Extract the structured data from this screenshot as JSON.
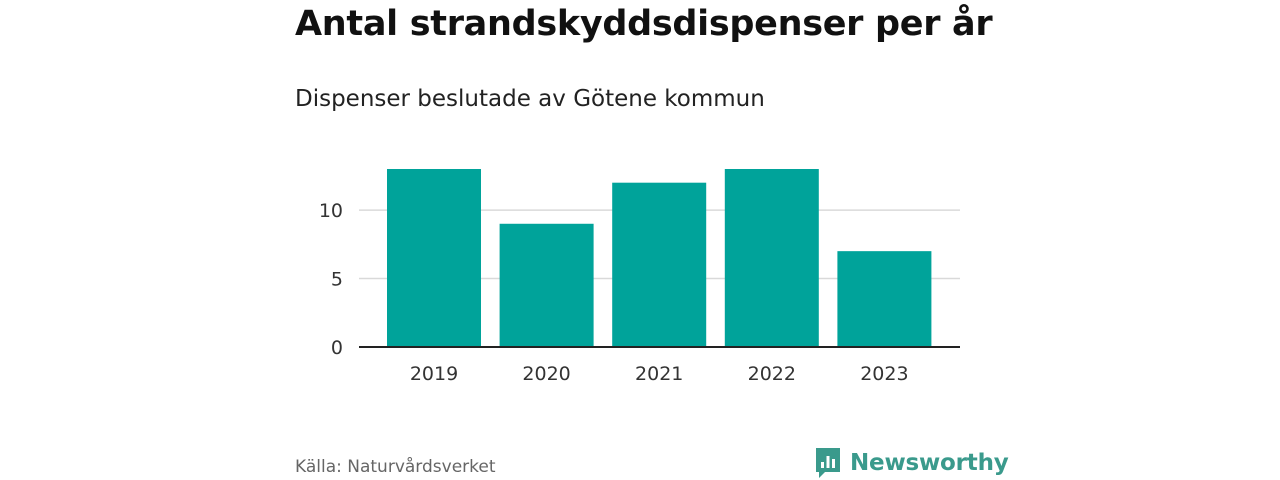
{
  "title": "Antal strandskyddsdispenser per år",
  "subtitle": "Dispenser beslutade av Götene kommun",
  "source": "Källa: Naturvårdsverket",
  "brand": {
    "name": "Newsworthy",
    "icon": "newsworthy-logo-icon"
  },
  "colors": {
    "bar": "#00a39a",
    "grid": "#d9d9d9",
    "axis": "#222222",
    "brand": "#3a9a8c"
  },
  "chart_data": {
    "type": "bar",
    "title": "Antal strandskyddsdispenser per år",
    "subtitle": "Dispenser beslutade av Götene kommun",
    "categories": [
      "2019",
      "2020",
      "2021",
      "2022",
      "2023"
    ],
    "values": [
      13,
      9,
      12,
      13,
      7
    ],
    "xlabel": "",
    "ylabel": "",
    "ylim": [
      0,
      13
    ],
    "yticks": [
      0,
      5,
      10
    ],
    "grid": true
  }
}
